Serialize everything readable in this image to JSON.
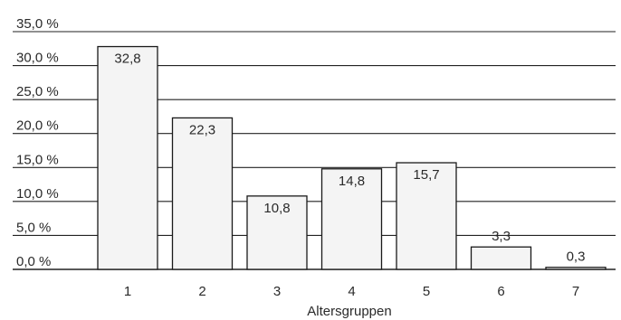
{
  "chart_data": {
    "type": "bar",
    "categories": [
      "1",
      "2",
      "3",
      "4",
      "5",
      "6",
      "7"
    ],
    "values": [
      32.8,
      22.3,
      10.8,
      14.8,
      15.7,
      3.3,
      0.3
    ],
    "data_labels": [
      "32,8",
      "22,3",
      "10,8",
      "14,8",
      "15,7",
      "3,3",
      "0,3"
    ],
    "ytick_labels": [
      "0,0 %",
      "5,0 %",
      "10,0 %",
      "15,0 %",
      "20,0 %",
      "25,0 %",
      "30,0 %",
      "35,0 %"
    ],
    "ytick_values": [
      0,
      5,
      10,
      15,
      20,
      25,
      30,
      35
    ],
    "xlabel": "Altersgruppen",
    "ylabel": "",
    "title": "",
    "ylim": [
      0,
      35
    ],
    "grid": true,
    "bar_fill": "#f4f4f4",
    "bar_stroke": "#1a1a1a",
    "grid_color": "#222222"
  }
}
